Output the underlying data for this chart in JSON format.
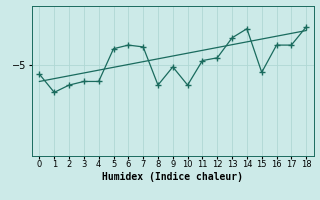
{
  "xlabel": "Humidex (Indice chaleur)",
  "ylabel": "",
  "background_color": "#cceae8",
  "line_color": "#1a6b5e",
  "grid_color": "#b0d8d4",
  "x_data": [
    0,
    1,
    2,
    3,
    4,
    5,
    6,
    7,
    8,
    9,
    10,
    11,
    12,
    13,
    14,
    15,
    16,
    17,
    18
  ],
  "y_data": [
    -6.0,
    -8.0,
    -7.2,
    -6.8,
    -6.8,
    -3.2,
    -2.8,
    -3.0,
    -7.2,
    -5.2,
    -7.2,
    -4.5,
    -4.2,
    -2.0,
    -1.0,
    -5.8,
    -2.8,
    -2.8,
    -0.8
  ],
  "trend_x": [
    0,
    18
  ],
  "trend_y": [
    -6.8,
    -1.2
  ],
  "ylim": [
    -15,
    1.5
  ],
  "xlim": [
    -0.5,
    18.5
  ],
  "yticks": [
    -5
  ],
  "xticks": [
    0,
    1,
    2,
    3,
    4,
    5,
    6,
    7,
    8,
    9,
    10,
    11,
    12,
    13,
    14,
    15,
    16,
    17,
    18
  ],
  "xlabel_fontsize": 7,
  "tick_fontsize": 6,
  "ytick_fontsize": 7
}
